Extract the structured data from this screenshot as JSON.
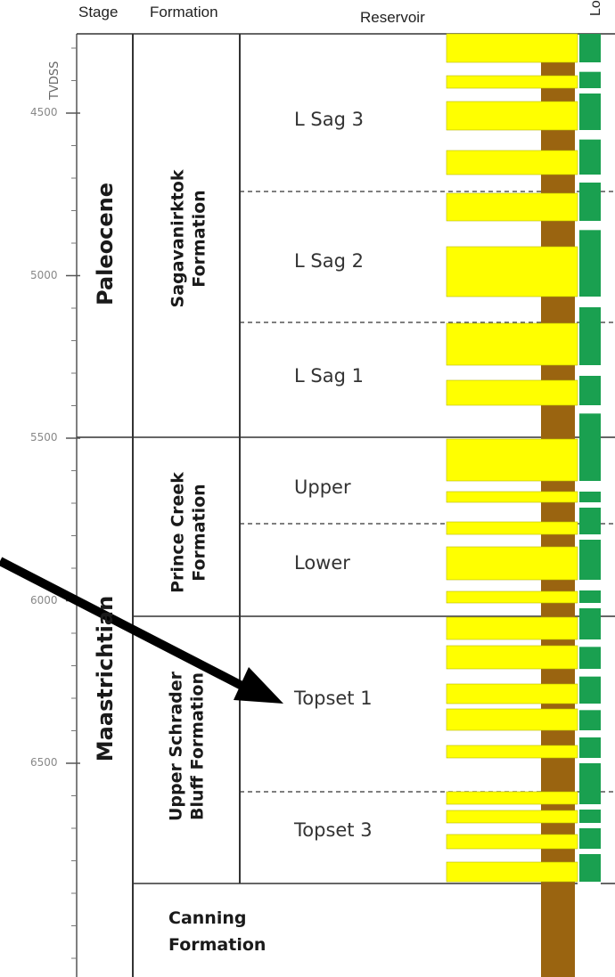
{
  "headers": {
    "stage": "Stage",
    "formation": "Formation",
    "reservoir": "Reservoir",
    "log": "Log"
  },
  "depth_axis": {
    "label": "TVDSS",
    "ticks": [
      "4500",
      "5000",
      "5500",
      "6000",
      "6500"
    ]
  },
  "stages": [
    "Paleocene",
    "Maastrichtian"
  ],
  "formations": {
    "sagavanirktok": [
      "Sagavanirktok",
      "Formation"
    ],
    "prince_creek": [
      "Prince Creek",
      "Formation"
    ],
    "upper_schrader": [
      "Upper Schrader",
      "Bluff Formation"
    ],
    "canning": [
      "Canning",
      "Formation"
    ]
  },
  "reservoirs": [
    "L Sag 3",
    "L Sag 2",
    "L Sag 1",
    "Upper",
    "Lower",
    "Topset 1",
    "Topset 3"
  ],
  "colors": {
    "sand": "#ffff00",
    "shale": "#9a6410",
    "log_green": "#1aa050",
    "line": "#333333",
    "arrow": "#000000"
  }
}
